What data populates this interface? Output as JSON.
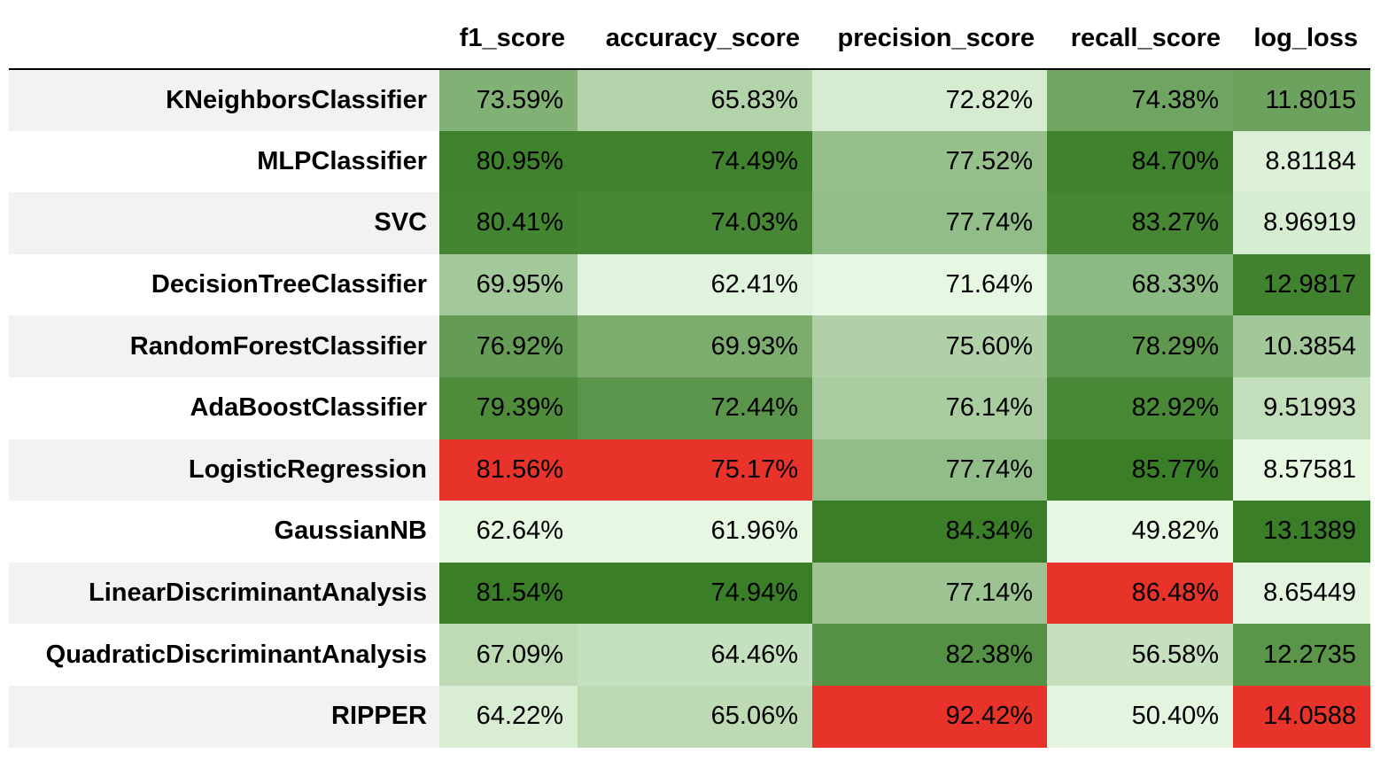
{
  "chart_data": {
    "type": "table",
    "columns": [
      "f1_score",
      "accuracy_score",
      "precision_score",
      "recall_score",
      "log_loss"
    ],
    "rows": [
      {
        "label": "KNeighborsClassifier",
        "cells": [
          "73.59%",
          "65.83%",
          "72.82%",
          "74.38%",
          "11.8015"
        ],
        "values": [
          73.59,
          65.83,
          72.82,
          74.38,
          11.8015
        ]
      },
      {
        "label": "MLPClassifier",
        "cells": [
          "80.95%",
          "74.49%",
          "77.52%",
          "84.70%",
          "8.81184"
        ],
        "values": [
          80.95,
          74.49,
          77.52,
          84.7,
          8.81184
        ]
      },
      {
        "label": "SVC",
        "cells": [
          "80.41%",
          "74.03%",
          "77.74%",
          "83.27%",
          "8.96919"
        ],
        "values": [
          80.41,
          74.03,
          77.74,
          83.27,
          8.96919
        ]
      },
      {
        "label": "DecisionTreeClassifier",
        "cells": [
          "69.95%",
          "62.41%",
          "71.64%",
          "68.33%",
          "12.9817"
        ],
        "values": [
          69.95,
          62.41,
          71.64,
          68.33,
          12.9817
        ]
      },
      {
        "label": "RandomForestClassifier",
        "cells": [
          "76.92%",
          "69.93%",
          "75.60%",
          "78.29%",
          "10.3854"
        ],
        "values": [
          76.92,
          69.93,
          75.6,
          78.29,
          10.3854
        ]
      },
      {
        "label": "AdaBoostClassifier",
        "cells": [
          "79.39%",
          "72.44%",
          "76.14%",
          "82.92%",
          "9.51993"
        ],
        "values": [
          79.39,
          72.44,
          76.14,
          82.92,
          9.51993
        ]
      },
      {
        "label": "LogisticRegression",
        "cells": [
          "81.56%",
          "75.17%",
          "77.74%",
          "85.77%",
          "8.57581"
        ],
        "values": [
          81.56,
          75.17,
          77.74,
          85.77,
          8.57581
        ]
      },
      {
        "label": "GaussianNB",
        "cells": [
          "62.64%",
          "61.96%",
          "84.34%",
          "49.82%",
          "13.1389"
        ],
        "values": [
          62.64,
          61.96,
          84.34,
          49.82,
          13.1389
        ]
      },
      {
        "label": "LinearDiscriminantAnalysis",
        "cells": [
          "81.54%",
          "74.94%",
          "77.14%",
          "86.48%",
          "8.65449"
        ],
        "values": [
          81.54,
          74.94,
          77.14,
          86.48,
          8.65449
        ]
      },
      {
        "label": "QuadraticDiscriminantAnalysis",
        "cells": [
          "67.09%",
          "64.46%",
          "82.38%",
          "56.58%",
          "12.2735"
        ],
        "values": [
          67.09,
          64.46,
          82.38,
          56.58,
          12.2735
        ]
      },
      {
        "label": "RIPPER",
        "cells": [
          "64.22%",
          "65.06%",
          "92.42%",
          "50.40%",
          "14.0588"
        ],
        "values": [
          64.22,
          65.06,
          92.42,
          50.4,
          14.0588
        ]
      }
    ],
    "highlight_max_color": "#e8332a",
    "gradient_colors": [
      "#e6f7e2",
      "#3a7e27"
    ]
  }
}
